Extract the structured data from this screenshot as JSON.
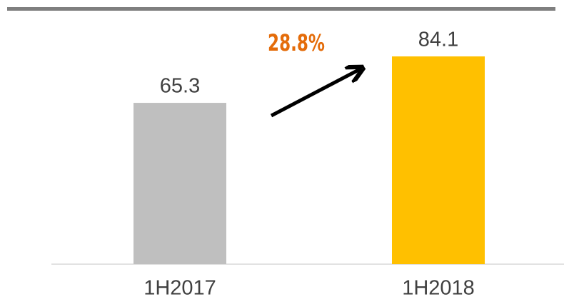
{
  "chart_data": {
    "type": "bar",
    "categories": [
      "1H2017",
      "1H2018"
    ],
    "values": [
      65.3,
      84.1
    ],
    "colors": [
      "#bfbfbf",
      "#ffc000"
    ],
    "annotation": "28.8%"
  }
}
